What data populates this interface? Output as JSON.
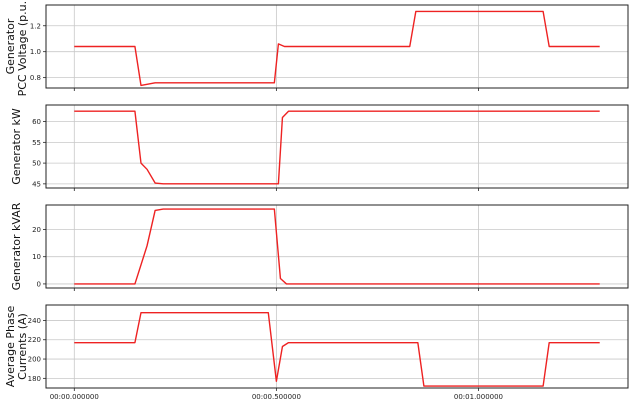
{
  "chart_data": [
    {
      "type": "line",
      "ylabel_lines": [
        "Generator",
        "PCC Voltage (p.u.)"
      ],
      "ylim": [
        0.72,
        1.36
      ],
      "yticks": [
        0.8,
        1.0,
        1.2
      ],
      "ytick_labels": [
        "0.8",
        "1.0",
        "1.2"
      ],
      "grid": true,
      "series": [
        {
          "color": "#ee2222",
          "x": [
            0.0,
            0.15,
            0.165,
            0.2,
            0.48,
            0.495,
            0.505,
            0.52,
            0.83,
            0.845,
            1.16,
            1.175,
            1.3
          ],
          "y": [
            1.04,
            1.04,
            0.74,
            0.76,
            0.76,
            0.76,
            1.06,
            1.04,
            1.04,
            1.31,
            1.31,
            1.04,
            1.04
          ]
        }
      ]
    },
    {
      "type": "line",
      "ylabel_lines": [
        "Generator kW"
      ],
      "ylim": [
        44,
        64
      ],
      "yticks": [
        45,
        50,
        55,
        60
      ],
      "ytick_labels": [
        "45",
        "50",
        "55",
        "60"
      ],
      "grid": true,
      "series": [
        {
          "color": "#ee2222",
          "x": [
            0.0,
            0.15,
            0.165,
            0.18,
            0.2,
            0.22,
            0.49,
            0.505,
            0.515,
            0.53,
            1.3
          ],
          "y": [
            62.5,
            62.5,
            50,
            48.5,
            45.2,
            45,
            45,
            45,
            61,
            62.5,
            62.5
          ]
        }
      ]
    },
    {
      "type": "line",
      "ylabel_lines": [
        "Generator kVAR"
      ],
      "ylim": [
        -1.5,
        29
      ],
      "yticks": [
        0,
        10,
        20
      ],
      "ytick_labels": [
        "0",
        "10",
        "20"
      ],
      "grid": true,
      "series": [
        {
          "color": "#ee2222",
          "x": [
            0.0,
            0.15,
            0.18,
            0.2,
            0.22,
            0.495,
            0.51,
            0.525,
            1.3
          ],
          "y": [
            0,
            0,
            14,
            27,
            27.5,
            27.5,
            2,
            0,
            0
          ]
        }
      ]
    },
    {
      "type": "line",
      "ylabel_lines": [
        "Average Phase",
        "Currents (A)"
      ],
      "ylim": [
        170,
        256
      ],
      "yticks": [
        180,
        200,
        220,
        240
      ],
      "ytick_labels": [
        "180",
        "200",
        "220",
        "240"
      ],
      "grid": true,
      "series": [
        {
          "color": "#ee2222",
          "x": [
            0.0,
            0.15,
            0.165,
            0.48,
            0.5,
            0.515,
            0.53,
            0.85,
            0.865,
            1.16,
            1.175,
            1.3
          ],
          "y": [
            217,
            217,
            248,
            248,
            177,
            213,
            217,
            217,
            172,
            172,
            217,
            217
          ]
        }
      ]
    }
  ],
  "x_axis": {
    "xlim": [
      -0.07,
      1.37
    ],
    "xticks": [
      0.0,
      0.5,
      1.0
    ],
    "xtick_labels": [
      "00:00.000000",
      "00:00.500000",
      "00:01.000000"
    ]
  }
}
